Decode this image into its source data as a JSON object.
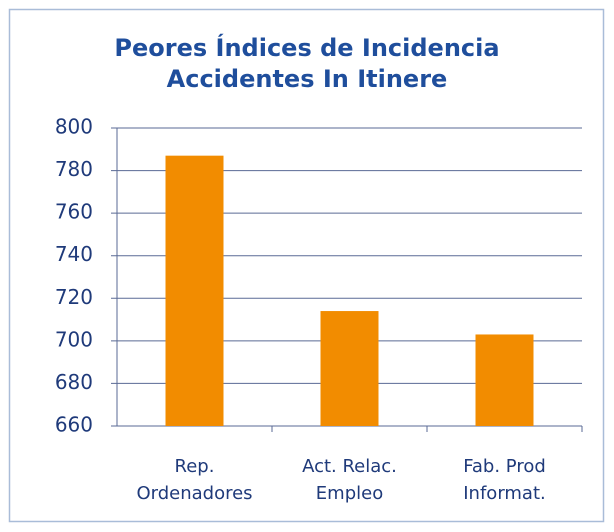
{
  "chart_data": {
    "type": "bar",
    "title": [
      "Peores Índices de Incidencia",
      "Accidentes In Itinere"
    ],
    "categories": [
      "Rep. Ordenadores",
      "Act. Relac. Empleo",
      "Fab. Prod Informat."
    ],
    "values": [
      787,
      714,
      703
    ],
    "color": "#f28c00",
    "ylim": [
      660,
      800
    ],
    "yticks": [
      660,
      680,
      700,
      720,
      740,
      760,
      780,
      800
    ],
    "grid": true
  }
}
